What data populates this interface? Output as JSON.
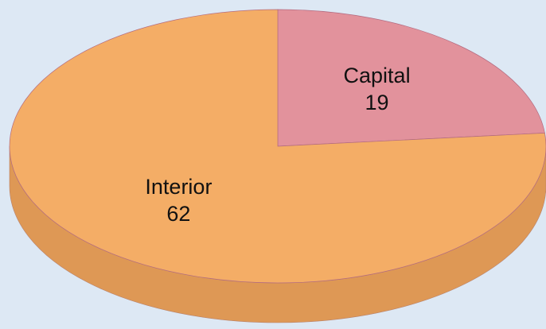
{
  "chart_data": {
    "type": "pie",
    "categories": [
      "Capital",
      "Interior"
    ],
    "values": [
      19,
      62
    ],
    "colors": [
      "#e2929c",
      "#f4ad66"
    ]
  }
}
